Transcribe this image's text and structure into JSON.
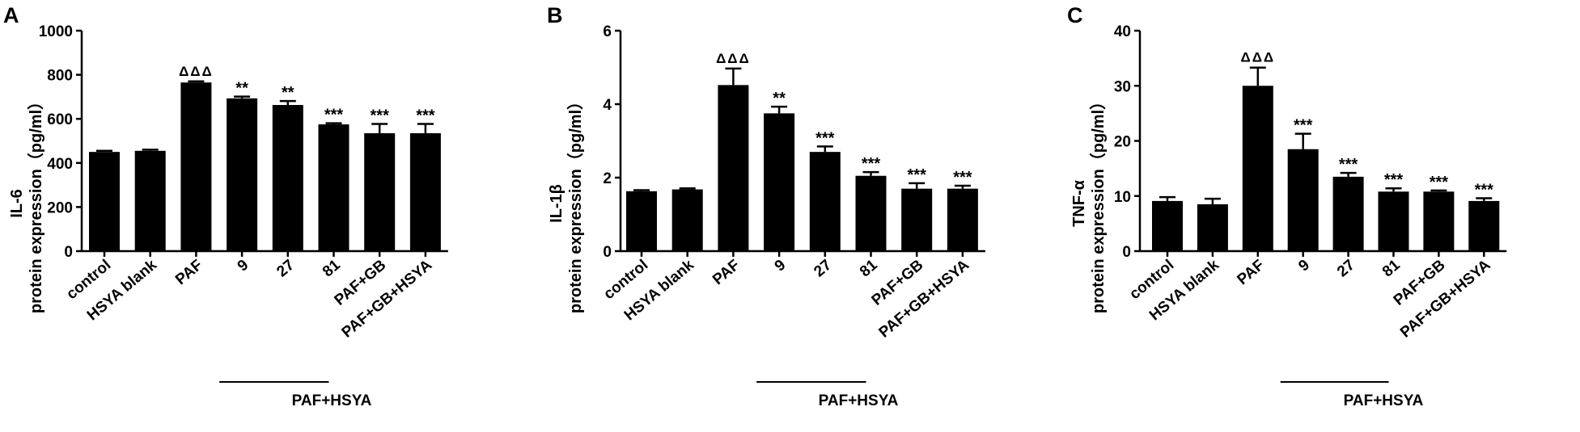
{
  "chart_data": [
    {
      "type": "bar",
      "panel_label": "A",
      "categories": [
        "control",
        "HSYA blank",
        "PAF",
        "9",
        "27",
        "81",
        "PAF+GB",
        "PAF+GB+HSYA"
      ],
      "values": [
        450,
        455,
        765,
        693,
        663,
        575,
        535,
        535
      ],
      "errors": [
        5,
        5,
        5,
        8,
        18,
        5,
        42,
        42
      ],
      "annotations": [
        "",
        "",
        "ΔΔΔ",
        "**",
        "**",
        "***",
        "***",
        "***"
      ],
      "group_label": "PAF+HSYA",
      "ylabel_line1": "IL-6",
      "ylabel_line2": "protein expression（pg/ml）",
      "ylim": [
        0,
        1000
      ],
      "yticks": [
        0,
        200,
        400,
        600,
        800,
        1000
      ],
      "grid": false,
      "bar_color": "#000000"
    },
    {
      "type": "bar",
      "panel_label": "B",
      "categories": [
        "control",
        "HSYA blank",
        "PAF",
        "9",
        "27",
        "81",
        "PAF+GB",
        "PAF+GB+HSYA"
      ],
      "values": [
        1.63,
        1.68,
        4.52,
        3.75,
        2.7,
        2.05,
        1.7,
        1.7
      ],
      "errors": [
        0.03,
        0.03,
        0.45,
        0.18,
        0.15,
        0.1,
        0.15,
        0.08
      ],
      "annotations": [
        "",
        "",
        "ΔΔΔ",
        "**",
        "***",
        "***",
        "***",
        "***"
      ],
      "group_label": "PAF+HSYA",
      "ylabel_line1": "IL-1β",
      "ylabel_line2": "protein expression（pg/ml）",
      "ylim": [
        0,
        6
      ],
      "yticks": [
        0,
        2,
        4,
        6
      ],
      "grid": false,
      "bar_color": "#000000"
    },
    {
      "type": "bar",
      "panel_label": "C",
      "categories": [
        "control",
        "HSYA blank",
        "PAF",
        "9",
        "27",
        "81",
        "PAF+GB",
        "PAF+GB+HSYA"
      ],
      "values": [
        9.1,
        8.5,
        30,
        18.5,
        13.5,
        10.8,
        10.8,
        9.1
      ],
      "errors": [
        0.7,
        1.0,
        3.3,
        2.8,
        0.7,
        0.6,
        0.2,
        0.5
      ],
      "annotations": [
        "",
        "",
        "ΔΔΔ",
        "***",
        "***",
        "***",
        "***",
        "***"
      ],
      "group_label": "PAF+HSYA",
      "ylabel_line1": "TNF-α",
      "ylabel_line2": "protein expression（pg/ml）",
      "ylim": [
        0,
        40
      ],
      "yticks": [
        0,
        10,
        20,
        30,
        40
      ],
      "grid": false,
      "bar_color": "#000000"
    }
  ]
}
